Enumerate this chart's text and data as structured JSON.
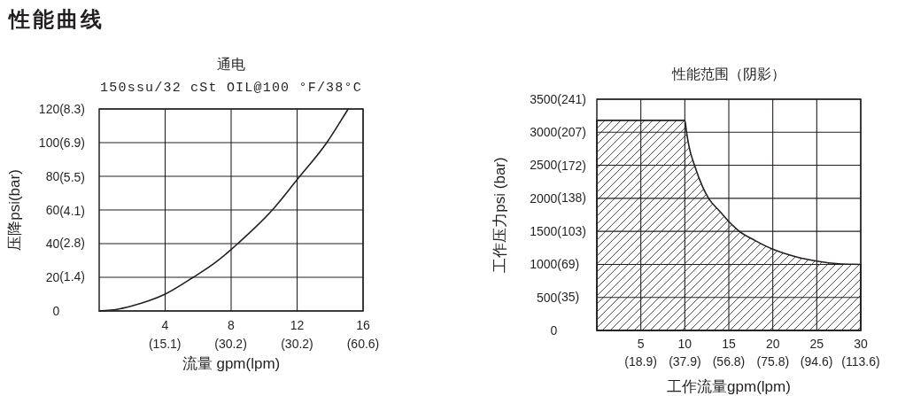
{
  "chart_data": [
    {
      "type": "line",
      "title": "通电",
      "subtitle": "150ssu/32 cSt OIL@100 °F/38°C",
      "xlabel": "流量 gpm(lpm)",
      "ylabel": "压降psi(bar)",
      "annotations": [
        "性能曲线"
      ],
      "x": [
        0,
        1,
        2,
        3,
        4,
        5.7,
        7,
        8,
        8.4,
        10.5,
        12,
        13.8,
        15.1
      ],
      "values": [
        0,
        0.8,
        3,
        6,
        10,
        20,
        28.5,
        36.5,
        40,
        60,
        78,
        100,
        120
      ],
      "color": "#231f20",
      "xlim": [
        0,
        16
      ],
      "ylim": [
        0,
        120
      ],
      "xticks": [
        4,
        8,
        {
          "value": 12,
          "label": "12\n(30.2)"
        },
        16
      ],
      "yticks": [
        0,
        20,
        40,
        60,
        80,
        100,
        120
      ],
      "x2lim": [
        0,
        60.6
      ],
      "x2ticks": [
        {
          "value": 15.1,
          "label": "(15.1)"
        },
        {
          "value": 30.2,
          "label": "(30.2)"
        },
        {
          "value": 60.6,
          "label": "(60.6)"
        }
      ],
      "y2lim": [
        0,
        8.3
      ],
      "y2ticks": [
        {
          "value": 1.4,
          "label": "(1.4)"
        },
        {
          "value": 2.8,
          "label": "(2.8)"
        },
        {
          "value": 4.1,
          "label": "(4.1)"
        },
        {
          "value": 5.5,
          "label": "(5.5)"
        },
        {
          "value": 6.9,
          "label": "(6.9)"
        },
        {
          "value": 8.3,
          "label": "(8.3)"
        }
      ],
      "grid": true
    },
    {
      "type": "area",
      "title": "性能范围（阴影）",
      "xlabel": "工作流量gpm(lpm)",
      "ylabel": "工作压力psi (bar)",
      "x": [
        0,
        10,
        10.2,
        10.5,
        11.1,
        12,
        12.7,
        14,
        15,
        16.2,
        18,
        20,
        22.5,
        25,
        27.5,
        30
      ],
      "values": [
        3180,
        3180,
        3000,
        2770,
        2500,
        2180,
        2000,
        1800,
        1650,
        1500,
        1360,
        1230,
        1120,
        1050,
        1010,
        1000
      ],
      "color": "#231f20",
      "xlim": [
        0,
        30
      ],
      "ylim": [
        0,
        3500
      ],
      "xticks": [
        5,
        10,
        15,
        20,
        25,
        30
      ],
      "yticks": [
        0,
        500,
        1000,
        1500,
        2000,
        2500,
        3000,
        3500
      ],
      "x2lim": [
        0,
        113.6
      ],
      "x2ticks": [
        {
          "value": 18.9,
          "label": "(18.9)"
        },
        {
          "value": 37.9,
          "label": "(37.9)"
        },
        {
          "value": 56.8,
          "label": "(56.8)"
        },
        {
          "value": 75.8,
          "label": "(75.8)"
        },
        {
          "value": 94.6,
          "label": "(94.6)"
        },
        {
          "value": 113.6,
          "label": "(113.6)"
        }
      ],
      "y2lim": [
        0,
        241
      ],
      "y2ticks": [
        {
          "value": 35,
          "label": "(35)"
        },
        {
          "value": 69,
          "label": "(69)"
        },
        {
          "value": 103,
          "label": "(103)"
        },
        {
          "value": 138,
          "label": "(138)"
        },
        {
          "value": 172,
          "label": "(172)"
        },
        {
          "value": 207,
          "label": "(207)"
        },
        {
          "value": 241,
          "label": "(241)"
        }
      ],
      "grid": true
    }
  ]
}
